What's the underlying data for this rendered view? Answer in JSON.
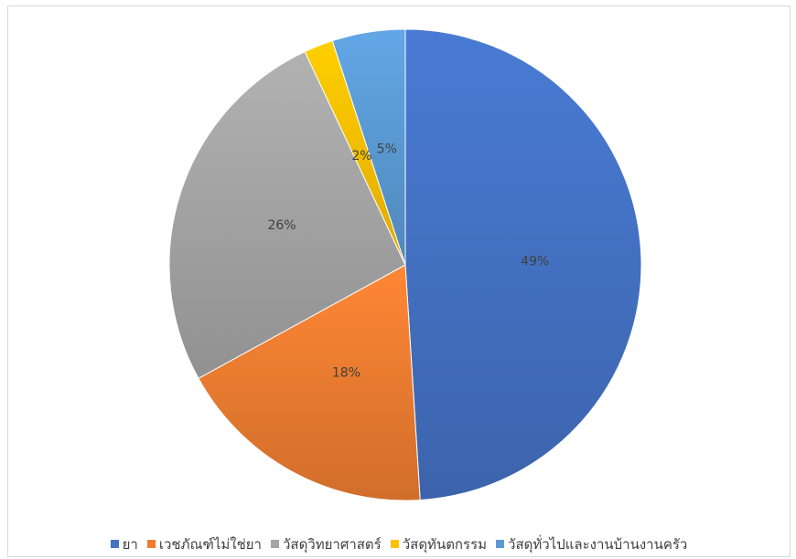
{
  "chart_data": {
    "type": "pie",
    "title": "",
    "categories": [
      "ยา",
      "เวชภัณฑ์ไม่ใช่ยา",
      "วัสดุวิทยาศาสตร์",
      "วัสดุทันตกรรม",
      "วัสดุทั่วไปและงานบ้านงานครัว"
    ],
    "values": [
      49,
      18,
      26,
      2,
      5
    ],
    "data_labels": [
      "49%",
      "18%",
      "26%",
      "2%",
      "5%"
    ],
    "colors": [
      "#4472c4",
      "#ed7d31",
      "#a5a5a5",
      "#ffc000",
      "#5b9bd5"
    ],
    "start_angle_deg": 0,
    "direction": "clockwise",
    "legend_placement": "bottom"
  }
}
